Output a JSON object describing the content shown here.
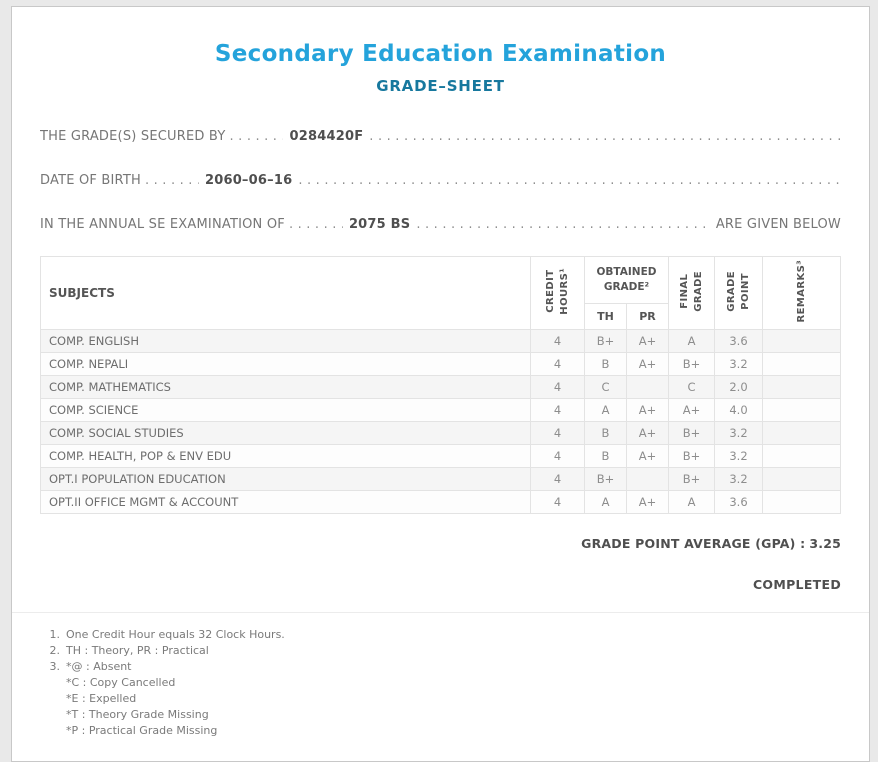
{
  "page": {
    "title": "Secondary Education Examination",
    "subtitle": "GRADE–SHEET"
  },
  "info": {
    "lines": [
      {
        "label": "THE GRADE(S) SECURED BY",
        "value": "0284420F",
        "suffix": ""
      },
      {
        "label": "DATE OF BIRTH",
        "value": "2060–06–16",
        "suffix": ""
      },
      {
        "label": "IN THE ANNUAL SE EXAMINATION OF",
        "value": "2075 BS",
        "suffix": "ARE GIVEN BELOW"
      }
    ]
  },
  "table": {
    "headers": {
      "subjects": "SUBJECTS",
      "credit_hours": "CREDIT\nHOURS¹",
      "obtained_grade": "OBTAINED\nGRADE²",
      "th": "TH",
      "pr": "PR",
      "final_grade": "FINAL\nGRADE",
      "grade_point": "GRADE\nPOINT",
      "remarks": "REMARKS³"
    },
    "rows": [
      {
        "subject": "COMP. ENGLISH",
        "credit": "4",
        "th": "B+",
        "pr": "A+",
        "final": "A",
        "point": "3.6",
        "remarks": ""
      },
      {
        "subject": "COMP. NEPALI",
        "credit": "4",
        "th": "B",
        "pr": "A+",
        "final": "B+",
        "point": "3.2",
        "remarks": ""
      },
      {
        "subject": "COMP. MATHEMATICS",
        "credit": "4",
        "th": "C",
        "pr": "",
        "final": "C",
        "point": "2.0",
        "remarks": ""
      },
      {
        "subject": "COMP. SCIENCE",
        "credit": "4",
        "th": "A",
        "pr": "A+",
        "final": "A+",
        "point": "4.0",
        "remarks": ""
      },
      {
        "subject": "COMP. SOCIAL STUDIES",
        "credit": "4",
        "th": "B",
        "pr": "A+",
        "final": "B+",
        "point": "3.2",
        "remarks": ""
      },
      {
        "subject": "COMP. HEALTH, POP & ENV EDU",
        "credit": "4",
        "th": "B",
        "pr": "A+",
        "final": "B+",
        "point": "3.2",
        "remarks": ""
      },
      {
        "subject": "OPT.I POPULATION EDUCATION",
        "credit": "4",
        "th": "B+",
        "pr": "",
        "final": "B+",
        "point": "3.2",
        "remarks": ""
      },
      {
        "subject": "OPT.II OFFICE MGMT & ACCOUNT",
        "credit": "4",
        "th": "A",
        "pr": "A+",
        "final": "A",
        "point": "3.6",
        "remarks": ""
      }
    ]
  },
  "summary": {
    "gpa_label": "GRADE POINT AVERAGE (GPA) :",
    "gpa_value": "3.25",
    "status": "COMPLETED"
  },
  "footnotes": [
    {
      "num": "1.",
      "text": "One Credit Hour equals 32 Clock Hours.",
      "sub": []
    },
    {
      "num": "2.",
      "text": "TH : Theory, PR : Practical",
      "sub": []
    },
    {
      "num": "3.",
      "text": "*@ : Absent",
      "sub": [
        "*C : Copy Cancelled",
        "*E : Expelled",
        "*T : Theory Grade Missing",
        "*P : Practical Grade Missing"
      ]
    }
  ],
  "colors": {
    "title": "#24a3db",
    "subtitle": "#17789e",
    "text": "#777777",
    "value": "#4f4f4f"
  }
}
